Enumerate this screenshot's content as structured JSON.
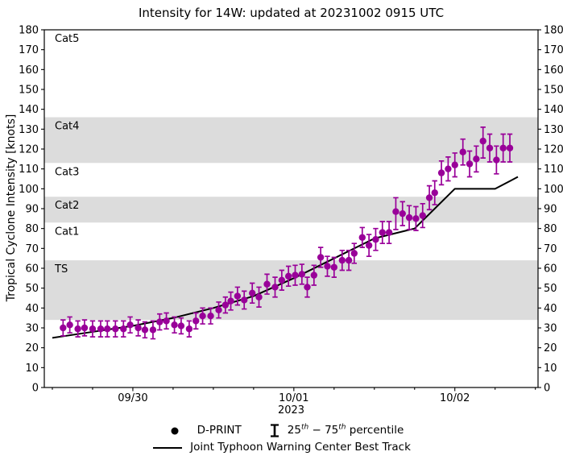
{
  "legend": {
    "pct": {
      "a": "25",
      "a_sup": "th",
      "b": " − 75",
      "b_sup": "th",
      "c": " percentile"
    }
  },
  "colors": {
    "dprint": "#990099",
    "best_track": "#000000",
    "band_shade": "#dcdcdc",
    "frame": "#000000"
  },
  "chart_data": {
    "type": "scatter",
    "title": "Intensity for 14W: updated at 20231002 0915 UTC",
    "xlabel": "2023",
    "ylabel": "Tropical Cyclone Intensity [knots]",
    "ylim": [
      0,
      180
    ],
    "y_tick_step": 10,
    "x_unit": "hours since 2023-09-29 12:00 UTC",
    "xlim": [
      -1.2,
      72.4
    ],
    "x_minor_tick_step": 6,
    "x_major_ticks": [
      {
        "t": 12,
        "label": "09/30"
      },
      {
        "t": 36,
        "label": "10/01"
      },
      {
        "t": 60,
        "label": "10/02"
      }
    ],
    "grid": false,
    "legend_position": "bottom",
    "bands": [
      {
        "name": "TS",
        "from": 34,
        "to": 64,
        "shaded": true
      },
      {
        "name": "Cat1",
        "from": 64,
        "to": 83,
        "shaded": false
      },
      {
        "name": "Cat2",
        "from": 83,
        "to": 96,
        "shaded": true
      },
      {
        "name": "Cat3",
        "from": 96,
        "to": 113,
        "shaded": false
      },
      {
        "name": "Cat4",
        "from": 113,
        "to": 136,
        "shaded": true
      },
      {
        "name": "Cat5",
        "from": 136,
        "to": 180,
        "shaded": false
      }
    ],
    "series": [
      {
        "name": "D-PRINT",
        "type": "scatter-errorbar",
        "point_format": "[t_hours, knots, err_minus, err_plus]",
        "points": [
          [
            1.6,
            30,
            4,
            4
          ],
          [
            2.6,
            31.5,
            4,
            4
          ],
          [
            3.8,
            29.5,
            4,
            4
          ],
          [
            4.8,
            30,
            4,
            4
          ],
          [
            6,
            29.5,
            4,
            4
          ],
          [
            7.2,
            29.5,
            4,
            4
          ],
          [
            8.2,
            29.5,
            4,
            4
          ],
          [
            9.4,
            29.5,
            4,
            4
          ],
          [
            10.6,
            29.5,
            4,
            4
          ],
          [
            11.6,
            31.5,
            4,
            4
          ],
          [
            12.8,
            30,
            4,
            4
          ],
          [
            13.8,
            29,
            4,
            4
          ],
          [
            15,
            29,
            4.5,
            4.5
          ],
          [
            16,
            33,
            4,
            4
          ],
          [
            17,
            33.5,
            4,
            4
          ],
          [
            18.2,
            31.5,
            4,
            4
          ],
          [
            19.2,
            31,
            4,
            4
          ],
          [
            20.4,
            29.5,
            4,
            4
          ],
          [
            21.4,
            33.5,
            4,
            4
          ],
          [
            22.4,
            36,
            4,
            4
          ],
          [
            23.6,
            36,
            4,
            4
          ],
          [
            24.8,
            39,
            4,
            4
          ],
          [
            25.8,
            41.5,
            4,
            4
          ],
          [
            26.6,
            43.5,
            4.5,
            4.5
          ],
          [
            27.6,
            46,
            4.5,
            4.5
          ],
          [
            28.6,
            44,
            4.5,
            4.5
          ],
          [
            29.8,
            47.5,
            5,
            5
          ],
          [
            30.8,
            45.5,
            5,
            5
          ],
          [
            32,
            52,
            5,
            5
          ],
          [
            33.2,
            50.5,
            5,
            5
          ],
          [
            34.2,
            54,
            5,
            5
          ],
          [
            35.2,
            56,
            5,
            5
          ],
          [
            36.2,
            56.5,
            5,
            5
          ],
          [
            37.2,
            57,
            5,
            5
          ],
          [
            38,
            50.5,
            5,
            5
          ],
          [
            39,
            56.5,
            5,
            5
          ],
          [
            40,
            65.5,
            5,
            5
          ],
          [
            41,
            61,
            5,
            5
          ],
          [
            42,
            60.5,
            5,
            5
          ],
          [
            43.2,
            64,
            5,
            5
          ],
          [
            44.2,
            64,
            5,
            5
          ],
          [
            45,
            67.5,
            5,
            5
          ],
          [
            46.2,
            75.5,
            5,
            5
          ],
          [
            47.2,
            71.5,
            5.5,
            5.5
          ],
          [
            48.2,
            74.5,
            5.5,
            5.5
          ],
          [
            49.2,
            78,
            5.5,
            5.5
          ],
          [
            50.2,
            78,
            5.5,
            5.5
          ],
          [
            51.2,
            88.5,
            9,
            7
          ],
          [
            52.2,
            87.5,
            6,
            6
          ],
          [
            53.2,
            85.5,
            6,
            6
          ],
          [
            54.2,
            85,
            6,
            6
          ],
          [
            55.2,
            86.5,
            6,
            6
          ],
          [
            56.2,
            95.5,
            6,
            6
          ],
          [
            57,
            98,
            6,
            6
          ],
          [
            58,
            108,
            6,
            6
          ],
          [
            59,
            110,
            6,
            6
          ],
          [
            60,
            112,
            6,
            6
          ],
          [
            61.2,
            118.5,
            6.5,
            6.5
          ],
          [
            62.2,
            112.5,
            6.5,
            6.5
          ],
          [
            63.2,
            115,
            6.5,
            6.5
          ],
          [
            64.2,
            124,
            8.5,
            7
          ],
          [
            65.2,
            120.5,
            7,
            7
          ],
          [
            66.2,
            114.5,
            7,
            7
          ],
          [
            67.2,
            120.5,
            7,
            7
          ],
          [
            68.2,
            120.5,
            7,
            7
          ]
        ]
      },
      {
        "name": "Joint Typhoon Warning Center Best Track",
        "type": "line",
        "point_format": "[t_hours, knots]",
        "points": [
          [
            0,
            25
          ],
          [
            6,
            28
          ],
          [
            12,
            31
          ],
          [
            18,
            35
          ],
          [
            24,
            40
          ],
          [
            30,
            46
          ],
          [
            36,
            55
          ],
          [
            42,
            65
          ],
          [
            48,
            75
          ],
          [
            54,
            80
          ],
          [
            60,
            100
          ],
          [
            66,
            100
          ],
          [
            69.4,
            106
          ]
        ]
      }
    ]
  }
}
